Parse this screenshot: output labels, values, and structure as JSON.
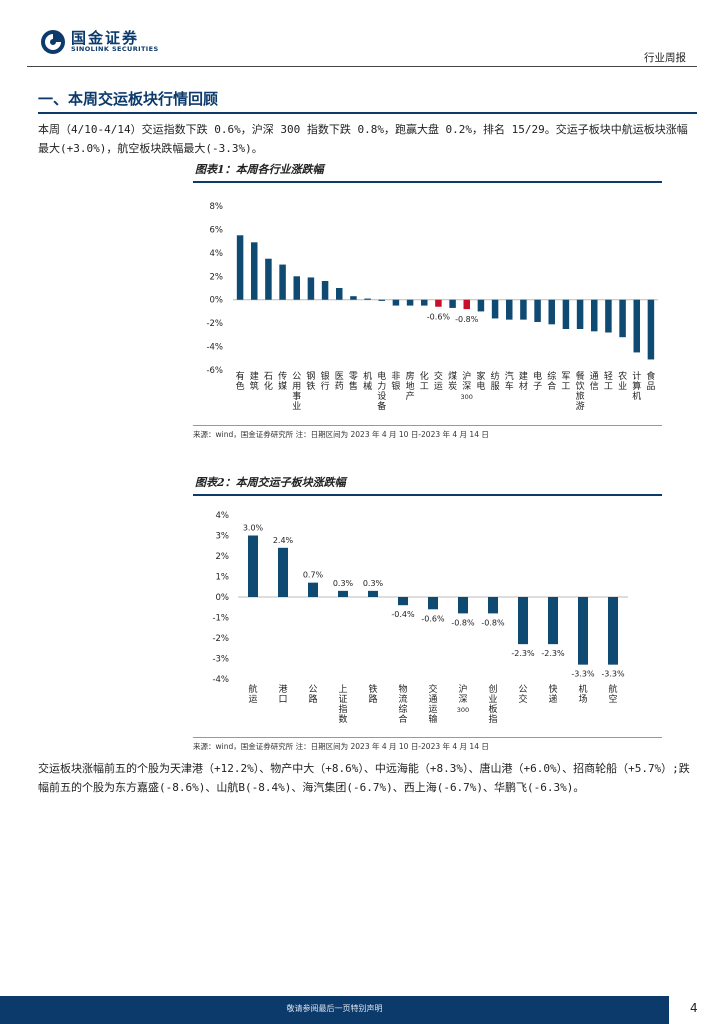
{
  "header": {
    "logo_cn": "国金证券",
    "logo_en": "SINOLINK SECURITIES",
    "report_type": "行业周报"
  },
  "section": {
    "title": "一、本周交运板块行情回顾",
    "intro": "本周（4/10-4/14）交运指数下跌 0.6%，沪深 300 指数下跌 0.8%，跑赢大盘 0.2%，排名 15/29。交运子板块中航运板块涨幅最大(+3.0%)，航空板块跌幅最大(-3.3%)。",
    "summary": "交运板块涨幅前五的个股为天津港（+12.2%）、物产中大（+8.6%）、中远海能（+8.3%）、唐山港（+6.0%）、招商轮船（+5.7%）;跌幅前五的个股为东方嘉盛(-8.6%)、山航B(-8.4%)、海汽集团(-6.7%)、西上海(-6.7%)、华鹏飞(-6.3%)。"
  },
  "figure1": {
    "title": "图表1：本周各行业涨跌幅",
    "source": "来源：wind，国金证券研究所    注：日期区间为 2023 年 4 月 10 日-2023 年 4 月 14 日"
  },
  "figure2": {
    "title": "图表2：本周交运子板块涨跌幅",
    "source": "来源：wind，国金证券研究所    注：日期区间为 2023 年 4 月 10 日-2023 年 4 月 14 日"
  },
  "chart_data": [
    {
      "type": "bar",
      "title": "本周各行业涨跌幅",
      "categories": [
        "有色",
        "建筑",
        "石化",
        "传媒",
        "公用事业",
        "钢铁",
        "银行",
        "医药",
        "零售",
        "机械",
        "电力设备",
        "非银",
        "房地产",
        "化工",
        "交运",
        "煤炭",
        "沪深300",
        "家电",
        "纺服",
        "汽车",
        "建材",
        "电子",
        "综合",
        "军工",
        "餐饮旅游",
        "通信",
        "轻工",
        "农业",
        "计算机",
        "食品"
      ],
      "values": [
        5.5,
        4.9,
        3.5,
        3.0,
        2.0,
        1.9,
        1.6,
        1.0,
        0.3,
        0.1,
        -0.1,
        -0.5,
        -0.5,
        -0.5,
        -0.6,
        -0.7,
        -0.8,
        -1.0,
        -1.6,
        -1.7,
        -1.7,
        -1.9,
        -2.1,
        -2.5,
        -2.5,
        -2.7,
        -2.8,
        -3.2,
        -4.5,
        -5.1
      ],
      "highlight": [
        "交运",
        "沪深300"
      ],
      "data_labels": {
        "交运": "-0.6%",
        "沪深300": "-0.8%"
      },
      "yticks": [
        "8%",
        "6%",
        "4%",
        "2%",
        "0%",
        "-2%",
        "-4%",
        "-6%"
      ],
      "ylim": [
        -6,
        8
      ],
      "bar_color": "#0e4a72",
      "highlight_color": "#c8102e"
    },
    {
      "type": "bar",
      "title": "本周交运子板块涨跌幅",
      "categories": [
        "航运",
        "港口",
        "公路",
        "上证指数",
        "铁路",
        "物流综合",
        "交通运输",
        "沪深300",
        "创业板指",
        "公交",
        "快递",
        "机场",
        "航空"
      ],
      "values": [
        3.0,
        2.4,
        0.7,
        0.3,
        0.3,
        -0.4,
        -0.6,
        -0.8,
        -0.8,
        -2.3,
        -2.3,
        -3.3,
        -3.3
      ],
      "data_labels": [
        "3.0%",
        "2.4%",
        "0.7%",
        "0.3%",
        "0.3%",
        "-0.4%",
        "-0.6%",
        "-0.8%",
        "-0.8%",
        "-2.3%",
        "-2.3%",
        "-3.3%",
        "-3.3%"
      ],
      "yticks": [
        "4%",
        "3%",
        "2%",
        "1%",
        "0%",
        "-1%",
        "-2%",
        "-3%",
        "-4%"
      ],
      "ylim": [
        -4,
        4
      ],
      "bar_color": "#0e4a72"
    }
  ],
  "footer": {
    "disclaimer": "敬请参阅最后一页特别声明",
    "page": "4"
  }
}
